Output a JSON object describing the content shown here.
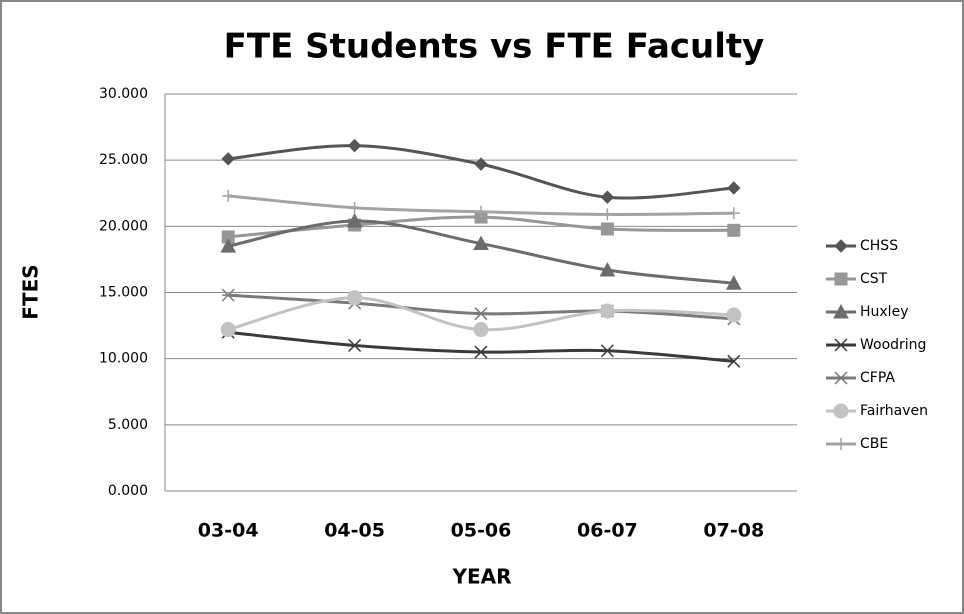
{
  "chart_data": {
    "type": "line",
    "title": "FTE Students vs FTE Faculty",
    "x_label": "YEAR",
    "y_label": "FTES",
    "categories": [
      "03-04",
      "04-05",
      "05-06",
      "06-07",
      "07-08"
    ],
    "ylim": [
      0,
      30
    ],
    "yticks": [
      {
        "value": 0,
        "label": "0.000"
      },
      {
        "value": 5,
        "label": "5.000"
      },
      {
        "value": 10,
        "label": "10.000"
      },
      {
        "value": 15,
        "label": "15.000"
      },
      {
        "value": 20,
        "label": "20.000"
      },
      {
        "value": 25,
        "label": "25.000"
      },
      {
        "value": 30,
        "label": "30.000"
      }
    ],
    "grid": true,
    "legend": "right",
    "smooth": true,
    "series": [
      {
        "name": "CHSS",
        "color": "#555555",
        "marker": "diamond",
        "values": [
          25.1,
          26.1,
          24.7,
          22.2,
          22.9
        ]
      },
      {
        "name": "CST",
        "color": "#979797",
        "marker": "square",
        "values": [
          19.2,
          20.1,
          20.7,
          19.8,
          19.7
        ]
      },
      {
        "name": "Huxley",
        "color": "#6c6c6c",
        "marker": "triangle",
        "values": [
          18.5,
          20.4,
          18.7,
          16.7,
          15.7
        ]
      },
      {
        "name": "Woodring",
        "color": "#3a3a3a",
        "marker": "x",
        "values": [
          12.0,
          11.0,
          10.5,
          10.6,
          9.8
        ]
      },
      {
        "name": "CFPA",
        "color": "#7a7a7a",
        "marker": "star",
        "values": [
          14.8,
          14.2,
          13.4,
          13.6,
          13.0
        ]
      },
      {
        "name": "Fairhaven",
        "color": "#c2c2c2",
        "marker": "circle",
        "values": [
          12.2,
          14.6,
          12.2,
          13.6,
          13.3
        ]
      },
      {
        "name": "CBE",
        "color": "#a3a3a3",
        "marker": "plus",
        "values": [
          22.3,
          21.4,
          21.1,
          20.9,
          21.0
        ]
      }
    ]
  }
}
